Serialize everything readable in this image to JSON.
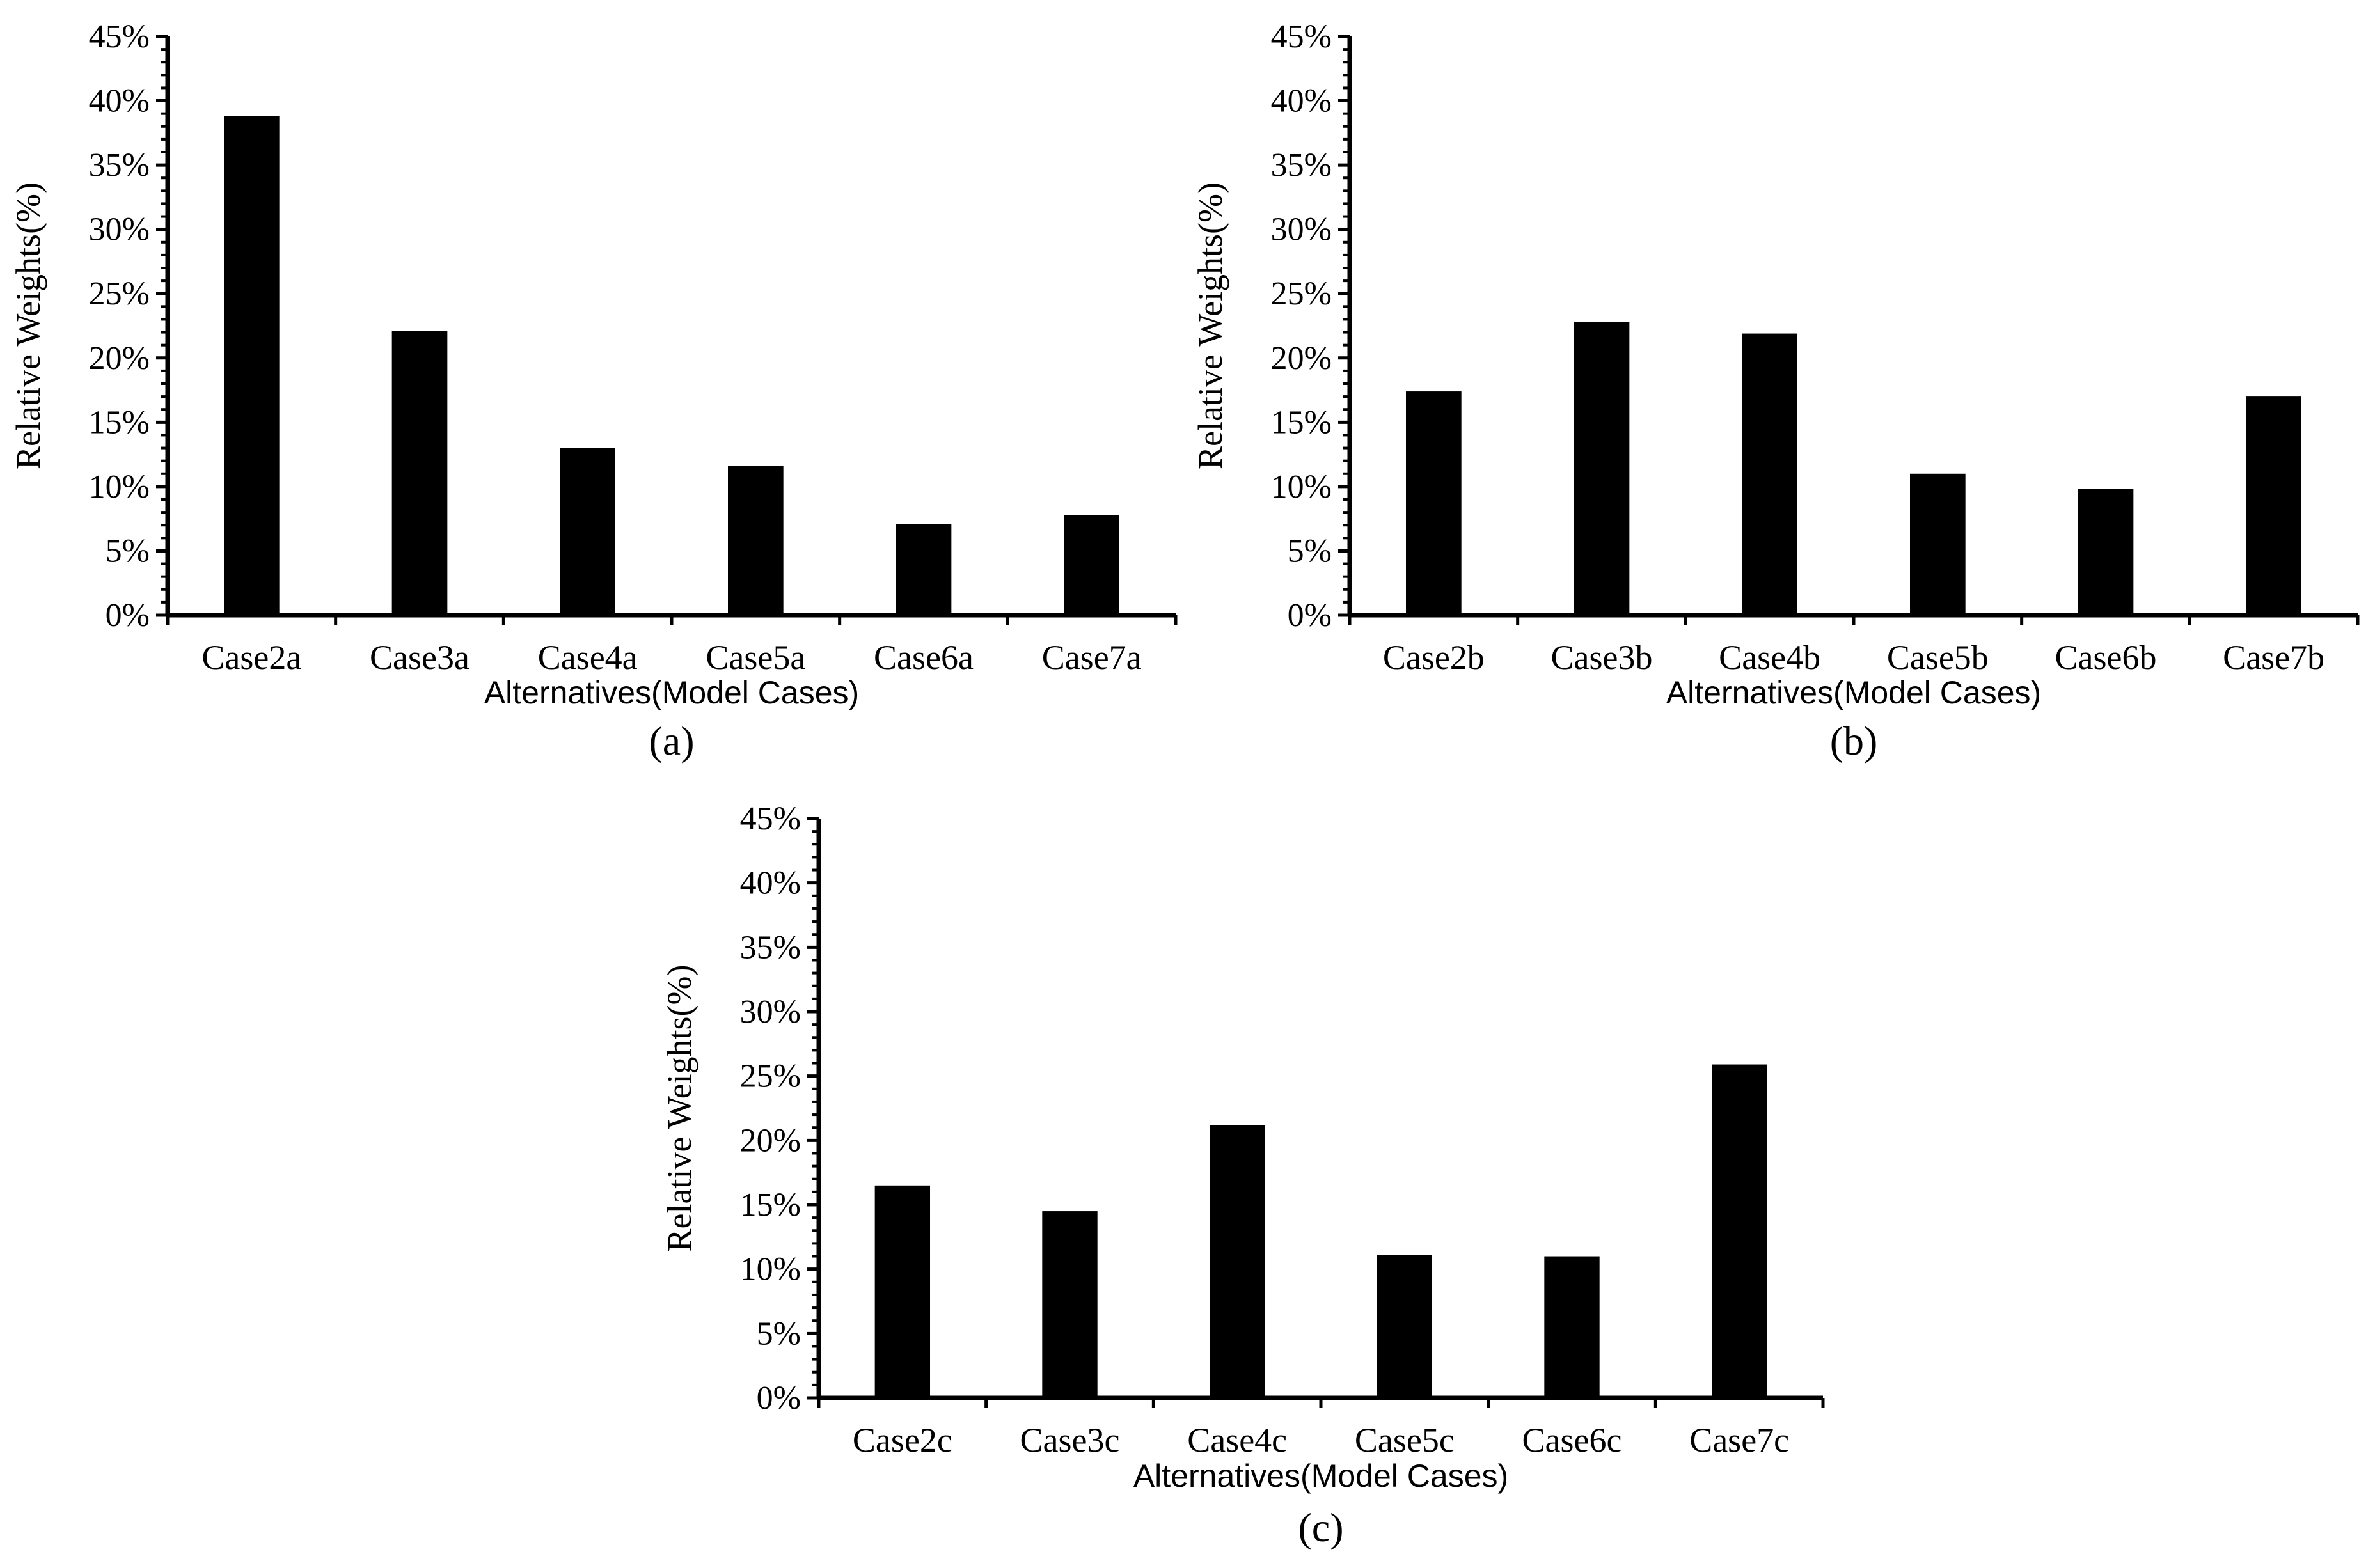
{
  "chart_data": [
    {
      "type": "bar",
      "categories": [
        "Case2a",
        "Case3a",
        "Case4a",
        "Case5a",
        "Case6a",
        "Case7a"
      ],
      "values": [
        38.8,
        22.1,
        13.0,
        11.6,
        7.1,
        7.8
      ],
      "xlabel": "Alternatives(Model Cases)",
      "ylabel": "Relative Weights(%)",
      "ylim": [
        0,
        45
      ],
      "yticks": [
        "0%",
        "5%",
        "10%",
        "15%",
        "20%",
        "25%",
        "30%",
        "35%",
        "40%",
        "45%"
      ],
      "panel_label": "(a)",
      "color": "#000000",
      "grid": false
    },
    {
      "type": "bar",
      "categories": [
        "Case2b",
        "Case3b",
        "Case4b",
        "Case5b",
        "Case6b",
        "Case7b"
      ],
      "values": [
        17.4,
        22.8,
        21.9,
        11.0,
        9.8,
        17.0
      ],
      "xlabel": "Alternatives(Model Cases)",
      "ylabel": "Relative Weights(%)",
      "ylim": [
        0,
        45
      ],
      "yticks": [
        "0%",
        "5%",
        "10%",
        "15%",
        "20%",
        "25%",
        "30%",
        "35%",
        "40%",
        "45%"
      ],
      "panel_label": "(b)",
      "color": "#000000",
      "grid": false
    },
    {
      "type": "bar",
      "categories": [
        "Case2c",
        "Case3c",
        "Case4c",
        "Case5c",
        "Case6c",
        "Case7c"
      ],
      "values": [
        16.5,
        14.5,
        21.2,
        11.1,
        11.0,
        25.9
      ],
      "xlabel": "Alternatives(Model Cases)",
      "ylabel": "Relative Weights(%)",
      "ylim": [
        0,
        45
      ],
      "yticks": [
        "0%",
        "5%",
        "10%",
        "15%",
        "20%",
        "25%",
        "30%",
        "35%",
        "40%",
        "45%"
      ],
      "panel_label": "(c)",
      "color": "#000000",
      "grid": false
    }
  ]
}
